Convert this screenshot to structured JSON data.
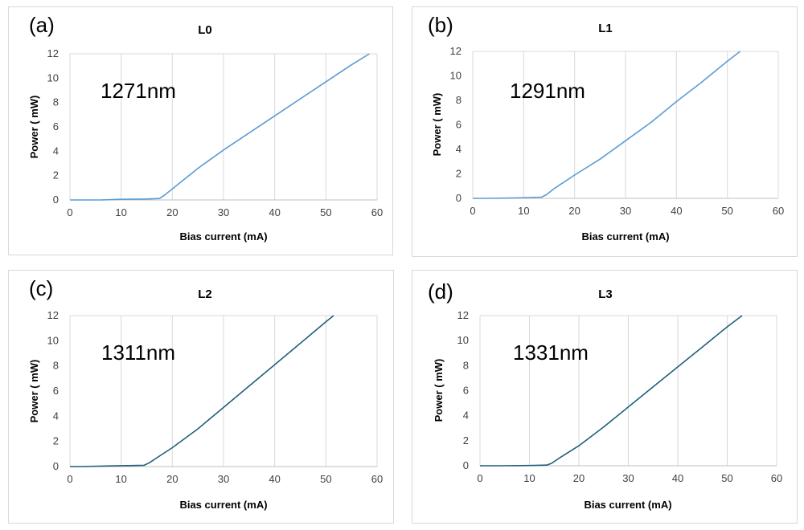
{
  "chart_data": [
    {
      "type": "line",
      "panel_label": "(a)",
      "title": "L0",
      "annotation": "1271nm",
      "xlabel": "Bias current (mA)",
      "ylabel": "Power ( mW)",
      "xlim": [
        0,
        60
      ],
      "ylim": [
        0,
        12
      ],
      "xticks": [
        "0",
        "10",
        "20",
        "30",
        "40",
        "50",
        "60"
      ],
      "yticks": [
        "0",
        "2",
        "4",
        "6",
        "8",
        "10",
        "12"
      ],
      "grid": "vertical",
      "line_color": "#5b9bd5",
      "series": [
        {
          "x": [
            0,
            6,
            10,
            15,
            17.5,
            18.5,
            20,
            25,
            30,
            35,
            40,
            45,
            50,
            55,
            58.5
          ],
          "y": [
            0,
            0,
            0.05,
            0.08,
            0.12,
            0.4,
            0.9,
            2.6,
            4.1,
            5.5,
            6.9,
            8.3,
            9.7,
            11.1,
            12.0
          ]
        }
      ]
    },
    {
      "type": "line",
      "panel_label": "(b)",
      "title": "L1",
      "annotation": "1291nm",
      "xlabel": "Bias current (mA)",
      "ylabel": "Power ( mW)",
      "xlim": [
        0,
        60
      ],
      "ylim": [
        0,
        12
      ],
      "xticks": [
        "0",
        "10",
        "20",
        "30",
        "40",
        "50",
        "60"
      ],
      "yticks": [
        "0",
        "2",
        "4",
        "6",
        "8",
        "10",
        "12"
      ],
      "grid": "vertical",
      "line_color": "#5b9bd5",
      "series": [
        {
          "x": [
            0,
            3,
            8,
            13.5,
            14.5,
            16,
            20,
            25,
            30,
            35,
            40,
            45,
            50,
            52.5
          ],
          "y": [
            0,
            0,
            0.03,
            0.1,
            0.3,
            0.8,
            1.9,
            3.2,
            4.7,
            6.2,
            7.9,
            9.5,
            11.2,
            12.0
          ]
        }
      ]
    },
    {
      "type": "line",
      "panel_label": "(c)",
      "title": "L2",
      "annotation": "1311nm",
      "xlabel": "Bias current (mA)",
      "ylabel": "Power ( mW)",
      "xlim": [
        0,
        60
      ],
      "ylim": [
        0,
        12
      ],
      "xticks": [
        "0",
        "10",
        "20",
        "30",
        "40",
        "50",
        "60"
      ],
      "yticks": [
        "0",
        "2",
        "4",
        "6",
        "8",
        "10",
        "12"
      ],
      "grid": "vertical",
      "line_color": "#1f5f7a",
      "series": [
        {
          "x": [
            0,
            2,
            8,
            14.5,
            15.5,
            17,
            20,
            25,
            30,
            35,
            40,
            45,
            50,
            51.5
          ],
          "y": [
            0,
            0,
            0.05,
            0.1,
            0.3,
            0.7,
            1.5,
            3.0,
            4.7,
            6.4,
            8.1,
            9.8,
            11.5,
            12.0
          ]
        }
      ]
    },
    {
      "type": "line",
      "panel_label": "(d)",
      "title": "L3",
      "annotation": "1331nm",
      "xlabel": "Bias current (mA)",
      "ylabel": "Power ( mW)",
      "xlim": [
        0,
        60
      ],
      "ylim": [
        0,
        12
      ],
      "xticks": [
        "0",
        "10",
        "20",
        "30",
        "40",
        "50",
        "60"
      ],
      "yticks": [
        "0",
        "2",
        "4",
        "6",
        "8",
        "10",
        "12"
      ],
      "grid": "vertical",
      "line_color": "#1f5f7a",
      "series": [
        {
          "x": [
            0,
            4,
            10,
            13.5,
            14.5,
            16,
            20,
            25,
            30,
            35,
            40,
            45,
            50,
            53
          ],
          "y": [
            0,
            0,
            0.02,
            0.05,
            0.2,
            0.6,
            1.6,
            3.1,
            4.7,
            6.3,
            7.9,
            9.5,
            11.1,
            12.0
          ]
        }
      ]
    }
  ]
}
